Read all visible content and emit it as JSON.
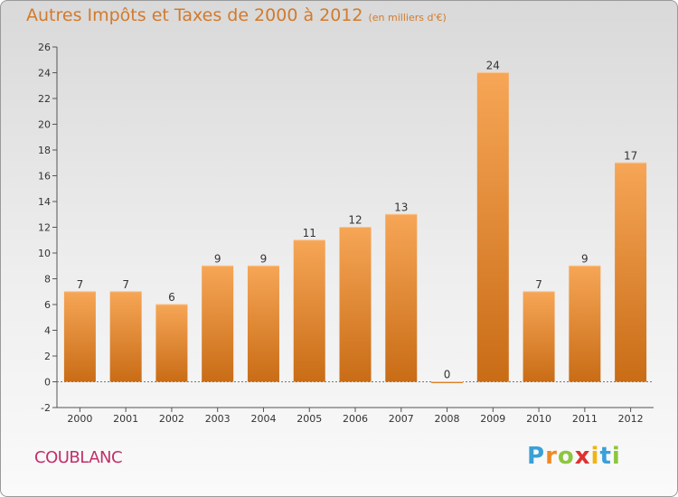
{
  "title": "Autres Impôts et Taxes de 2000 à 2012",
  "subtitle": "(en milliers d'€)",
  "commune": "COUBLANC",
  "logo": {
    "letters": [
      "P",
      "r",
      "o",
      "x",
      "i",
      "t",
      "i"
    ],
    "colors": [
      "#3aa0d8",
      "#f08a24",
      "#8dc63f",
      "#e0312f",
      "#f2b40e",
      "#3aa0d8",
      "#8dc63f"
    ]
  },
  "colors": {
    "bar_light": "#f6a656",
    "bar_dark": "#c96c16",
    "title": "#d27a2c",
    "commune": "#c0306a"
  },
  "chart_data": {
    "type": "bar",
    "title": "Autres Impôts et Taxes de 2000 à 2012",
    "subtitle": "(en milliers d'€)",
    "categories": [
      "2000",
      "2001",
      "2002",
      "2003",
      "2004",
      "2005",
      "2006",
      "2007",
      "2008",
      "2009",
      "2010",
      "2011",
      "2012"
    ],
    "values": [
      7,
      7,
      6,
      9,
      9,
      11,
      12,
      13,
      0,
      24,
      7,
      9,
      17
    ],
    "ylim": [
      -2,
      26
    ],
    "yticks": [
      -2,
      0,
      2,
      4,
      6,
      8,
      10,
      12,
      14,
      16,
      18,
      20,
      22,
      24,
      26
    ],
    "grid": false,
    "xlabel": "",
    "ylabel": ""
  }
}
